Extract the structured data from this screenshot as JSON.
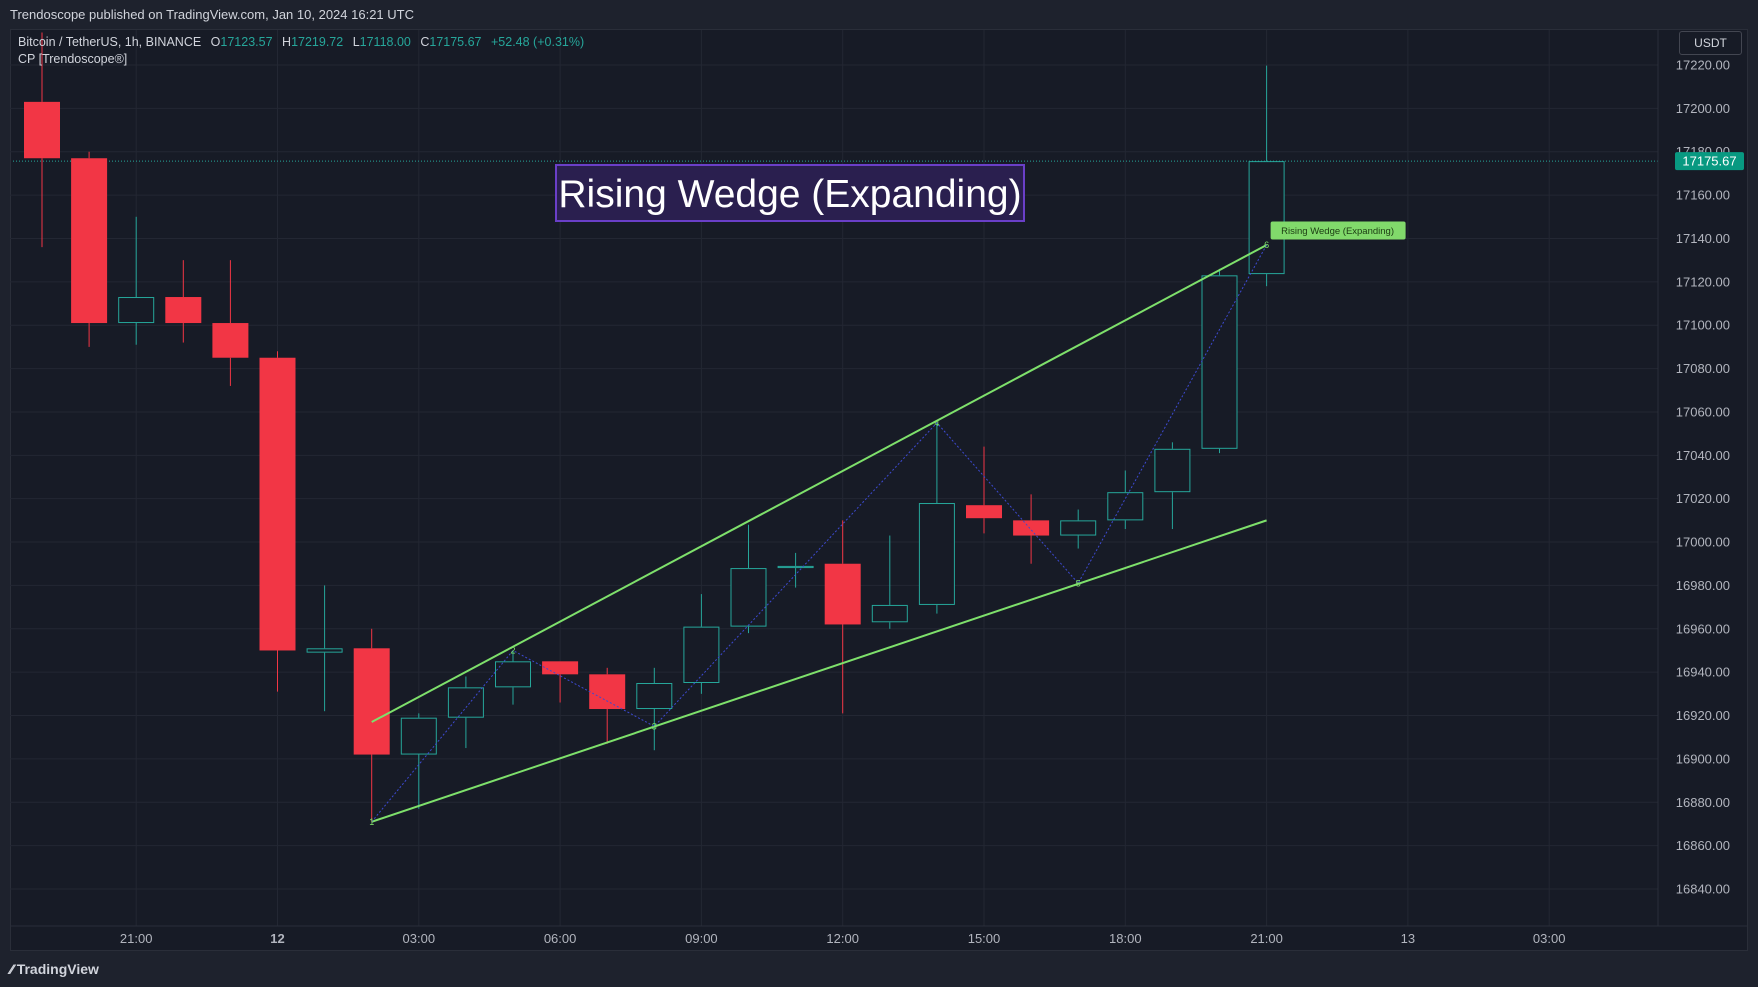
{
  "header": {
    "publisher_line": "Trendoscope published on TradingView.com, Jan 10, 2024 16:21 UTC"
  },
  "legend": {
    "symbol": "Bitcoin / TetherUS, 1h, BINANCE",
    "open_label": "O",
    "open": "17123.57",
    "high_label": "H",
    "high": "17219.72",
    "low_label": "L",
    "low": "17118.00",
    "close_label": "C",
    "close": "17175.67",
    "change": "+52.48 (+0.31%)",
    "indicator": "CP [Trendoscope®]"
  },
  "currency": "USDT",
  "branding": {
    "logo_icon": "tradingview-logo-icon",
    "name": "TradingView"
  },
  "colors": {
    "up": "#26a69a",
    "down": "#f23645",
    "wedge": "#7ee06b",
    "zigzag": "#3d4ad1",
    "title_bg": "#2a1f4f",
    "title_border": "#6a3fc8",
    "price_label_bg": "#089981"
  },
  "chart_data": {
    "type": "candlestick",
    "title": "Rising Wedge (Expanding)",
    "pattern_label": "Rising Wedge (Expanding)",
    "current_price": 17175.67,
    "current_price_label": "17175.67",
    "ylim": [
      16825,
      17235
    ],
    "y_ticks": [
      17220,
      17200,
      17180,
      17160,
      17140,
      17120,
      17100,
      17080,
      17060,
      17040,
      17020,
      17000,
      16980,
      16960,
      16940,
      16920,
      16900,
      16880,
      16860,
      16840
    ],
    "y_tick_labels": [
      "17220.00",
      "17200.00",
      "17180.00",
      "17160.00",
      "17140.00",
      "17120.00",
      "17100.00",
      "17080.00",
      "17060.00",
      "17040.00",
      "17020.00",
      "17000.00",
      "16980.00",
      "16960.00",
      "16940.00",
      "16920.00",
      "16900.00",
      "16880.00",
      "16860.00",
      "16840.00"
    ],
    "x_ticks": [
      {
        "bar": 2,
        "label": "21:00",
        "bold": false
      },
      {
        "bar": 5,
        "label": "12",
        "bold": true
      },
      {
        "bar": 8,
        "label": "03:00",
        "bold": false
      },
      {
        "bar": 11,
        "label": "06:00",
        "bold": false
      },
      {
        "bar": 14,
        "label": "09:00",
        "bold": false
      },
      {
        "bar": 17,
        "label": "12:00",
        "bold": false
      },
      {
        "bar": 20,
        "label": "15:00",
        "bold": false
      },
      {
        "bar": 23,
        "label": "18:00",
        "bold": false
      },
      {
        "bar": 26,
        "label": "21:00",
        "bold": false
      },
      {
        "bar": 29,
        "label": "13",
        "bold": false
      },
      {
        "bar": 32,
        "label": "03:00",
        "bold": false
      }
    ],
    "candles": [
      {
        "o": 17203,
        "h": 17235,
        "l": 17136,
        "c": 17177
      },
      {
        "o": 17177,
        "h": 17180,
        "l": 17090,
        "c": 17101
      },
      {
        "o": 17101,
        "h": 17150,
        "l": 17091,
        "c": 17113
      },
      {
        "o": 17113,
        "h": 17130,
        "l": 17092,
        "c": 17101
      },
      {
        "o": 17101,
        "h": 17130,
        "l": 17072,
        "c": 17085
      },
      {
        "o": 17085,
        "h": 17088,
        "l": 16931,
        "c": 16950
      },
      {
        "o": 16949,
        "h": 16980,
        "l": 16922,
        "c": 16951
      },
      {
        "o": 16951,
        "h": 16960,
        "l": 16871,
        "c": 16902
      },
      {
        "o": 16902,
        "h": 16921,
        "l": 16877,
        "c": 16919
      },
      {
        "o": 16919,
        "h": 16938,
        "l": 16905,
        "c": 16933
      },
      {
        "o": 16933,
        "h": 16950,
        "l": 16925,
        "c": 16945
      },
      {
        "o": 16945,
        "h": 16945,
        "l": 16926,
        "c": 16939
      },
      {
        "o": 16939,
        "h": 16942,
        "l": 16907,
        "c": 16923
      },
      {
        "o": 16923,
        "h": 16942,
        "l": 16904,
        "c": 16935
      },
      {
        "o": 16935,
        "h": 16976,
        "l": 16930,
        "c": 16961
      },
      {
        "o": 16961,
        "h": 17008,
        "l": 16958,
        "c": 16988
      },
      {
        "o": 16988,
        "h": 16995,
        "l": 16979,
        "c": 16989
      },
      {
        "o": 16990,
        "h": 17010,
        "l": 16921,
        "c": 16962
      },
      {
        "o": 16963,
        "h": 17003,
        "l": 16960,
        "c": 16971
      },
      {
        "o": 16971,
        "h": 17055,
        "l": 16967,
        "c": 17018
      },
      {
        "o": 17017,
        "h": 17044,
        "l": 17004,
        "c": 17011
      },
      {
        "o": 17010,
        "h": 17022,
        "l": 16990,
        "c": 17003
      },
      {
        "o": 17003,
        "h": 17015,
        "l": 16997,
        "c": 17010
      },
      {
        "o": 17010,
        "h": 17033,
        "l": 17006,
        "c": 17023
      },
      {
        "o": 17023,
        "h": 17046,
        "l": 17006,
        "c": 17043
      },
      {
        "o": 17043,
        "h": 17126,
        "l": 17041,
        "c": 17123
      },
      {
        "o": 17123.57,
        "h": 17219.72,
        "l": 17118,
        "c": 17175.67
      }
    ],
    "pivots": [
      {
        "bar": 7,
        "price": 16871,
        "label": "1"
      },
      {
        "bar": 10,
        "price": 16950,
        "label": "2"
      },
      {
        "bar": 13,
        "price": 16915,
        "label": "3"
      },
      {
        "bar": 19,
        "price": 17055,
        "label": "4"
      },
      {
        "bar": 22,
        "price": 16981,
        "label": "5"
      },
      {
        "bar": 26,
        "price": 17137,
        "label": "6"
      }
    ],
    "upper_line": [
      {
        "bar": 7,
        "price": 16917
      },
      {
        "bar": 26,
        "price": 17137
      }
    ],
    "lower_line": [
      {
        "bar": 7,
        "price": 16871
      },
      {
        "bar": 26,
        "price": 17010
      }
    ]
  }
}
